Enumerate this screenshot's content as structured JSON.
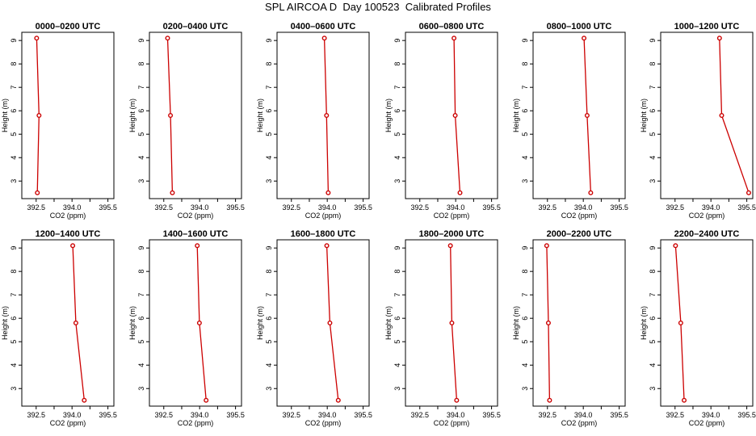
{
  "title": "SPL AIRCOA D  Day 100523  Calibrated Profiles",
  "colors": {
    "line": "#cc0000",
    "axis": "#000000",
    "background": "#ffffff"
  },
  "chart_data": {
    "type": "line",
    "xlabel": "CO2 (ppm)",
    "ylabel": "Height (m)",
    "xlim": [
      391.9,
      395.75
    ],
    "ylim": [
      2.25,
      9.35
    ],
    "x_ticks": [
      392.5,
      393.25,
      394.0,
      394.75,
      395.5
    ],
    "x_tick_labels": [
      "392.5",
      "",
      "394.0",
      "",
      "395.5"
    ],
    "y_ticks": [
      3,
      4,
      5,
      6,
      7,
      8,
      9
    ],
    "y_tick_labels": [
      "3",
      "4",
      "5",
      "6",
      "7",
      "8",
      "9"
    ],
    "heights": [
      9.1,
      5.8,
      2.5
    ],
    "panels": [
      {
        "title": "0000–0200 UTC",
        "co2": [
          392.52,
          392.62,
          392.55
        ]
      },
      {
        "title": "0200–0400 UTC",
        "co2": [
          392.66,
          392.78,
          392.86
        ]
      },
      {
        "title": "0400–0600 UTC",
        "co2": [
          393.88,
          393.97,
          394.04
        ]
      },
      {
        "title": "0600–0800 UTC",
        "co2": [
          393.93,
          393.98,
          394.18
        ]
      },
      {
        "title": "0800–1000 UTC",
        "co2": [
          394.03,
          394.16,
          394.31
        ]
      },
      {
        "title": "1000–1200 UTC",
        "co2": [
          394.36,
          394.45,
          395.58
        ]
      },
      {
        "title": "1200–1400 UTC",
        "co2": [
          394.03,
          394.16,
          394.51
        ]
      },
      {
        "title": "1400–1600 UTC",
        "co2": [
          393.9,
          393.99,
          394.27
        ]
      },
      {
        "title": "1600–1800 UTC",
        "co2": [
          393.98,
          394.11,
          394.46
        ]
      },
      {
        "title": "1800–2000 UTC",
        "co2": [
          393.78,
          393.84,
          394.04
        ]
      },
      {
        "title": "2000–2200 UTC",
        "co2": [
          392.47,
          392.54,
          392.59
        ]
      },
      {
        "title": "2200–2400 UTC",
        "co2": [
          392.52,
          392.74,
          392.88
        ]
      }
    ]
  }
}
